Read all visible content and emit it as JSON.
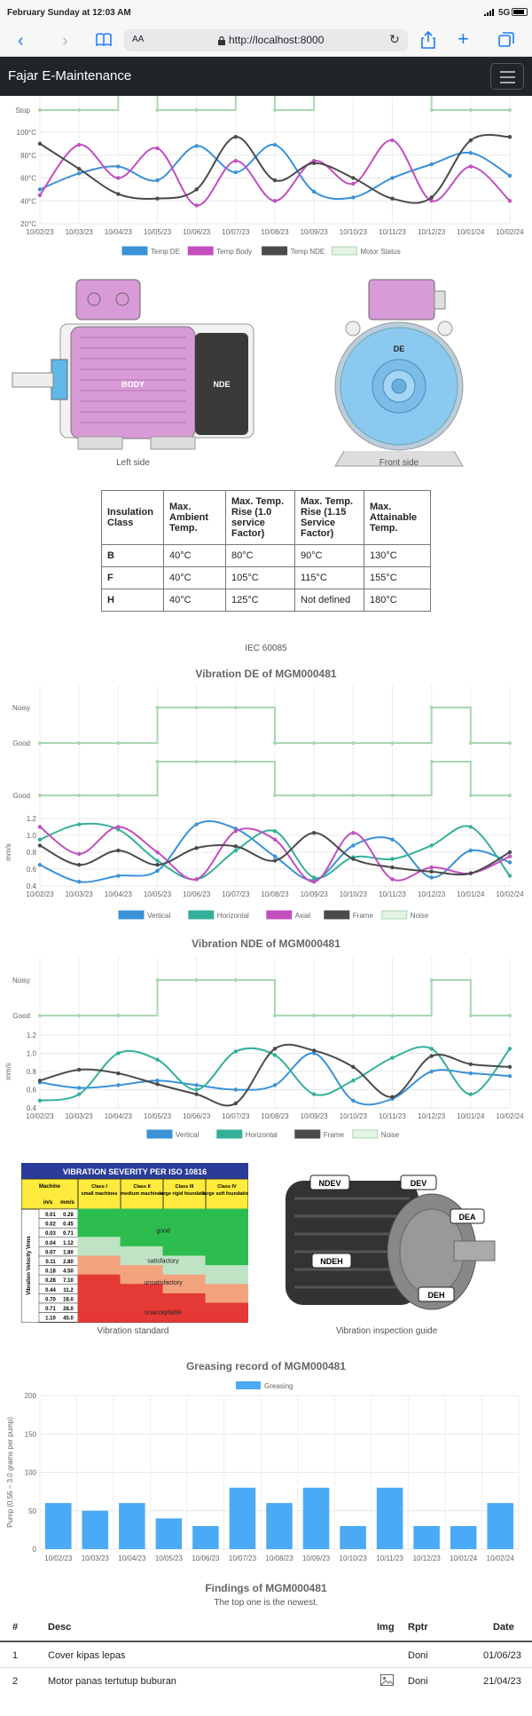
{
  "status": {
    "time": "February Sunday at 12:03 AM",
    "signal": "5G"
  },
  "browser": {
    "reader_label": "AA",
    "url": "http://localhost:8000"
  },
  "app": {
    "brand": "Fajar E-Maintenance"
  },
  "colors": {
    "blue": "#3a92d8",
    "magenta": "#c24fbf",
    "dark": "#4a4a4a",
    "green": "#a8d8b0",
    "teal": "#34b09a",
    "bar": "#4aaaf5"
  },
  "dates": [
    "10/02/23",
    "10/03/23",
    "10/04/23",
    "10/05/23",
    "10/06/23",
    "10/07/23",
    "10/08/23",
    "10/09/23",
    "10/10/23",
    "10/11/23",
    "10/12/23",
    "10/01/24",
    "10/02/24"
  ],
  "temp_chart": {
    "chart_data": {
      "type": "line",
      "status_labels": [
        "Stop"
      ],
      "y_ticks": [
        "100°C",
        "80°C",
        "60°C",
        "40°C",
        "20°C"
      ],
      "ylim": [
        20,
        100
      ],
      "series": [
        {
          "name": "Temp DE",
          "values": [
            50,
            64,
            70,
            58,
            88,
            65,
            89,
            48,
            43,
            60,
            72,
            82,
            62
          ]
        },
        {
          "name": "Temp Body",
          "values": [
            45,
            89,
            60,
            86,
            36,
            75,
            40,
            75,
            55,
            93,
            40,
            70,
            40
          ]
        },
        {
          "name": "Temp NDE",
          "values": [
            90,
            68,
            46,
            42,
            50,
            96,
            58,
            73,
            60,
            42,
            43,
            93,
            96
          ]
        },
        {
          "name": "Motor Status",
          "values": [
            "Stop",
            "Stop",
            "Run",
            "Stop",
            "Stop",
            "Run",
            "Stop",
            "Run",
            "Run",
            "Run",
            "Stop",
            "Stop",
            "Stop"
          ]
        }
      ]
    }
  },
  "motor": {
    "body_label": "BODY",
    "nde_label": "NDE",
    "de_label": "DE",
    "left_caption": "Left side",
    "front_caption": "Front side"
  },
  "insulation": {
    "headers": [
      "Insulation Class",
      "Max. Ambient Temp.",
      "Max. Temp. Rise (1.0 service Factor)",
      "Max. Temp. Rise (1.15 Service Factor)",
      "Max. Attainable Temp."
    ],
    "rows": [
      [
        "B",
        "40°C",
        "80°C",
        "90°C",
        "130°C"
      ],
      [
        "F",
        "40°C",
        "105°C",
        "115°C",
        "155°C"
      ],
      [
        "H",
        "40°C",
        "125°C",
        "Not defined",
        "180°C"
      ]
    ],
    "caption": "IEC 60085"
  },
  "vib_de": {
    "title": "Vibration DE of MGM000481",
    "chart_data": {
      "type": "line",
      "noise_labels": [
        "Noisy",
        "Good"
      ],
      "status_labels": [
        "Good"
      ],
      "y_ticks": [
        "1.2",
        "1.0",
        "0.8",
        "0.6",
        "0.4"
      ],
      "ylim": [
        0.4,
        1.2
      ],
      "ylabel": "mm/s",
      "series": [
        {
          "name": "Vertical",
          "values": [
            0.65,
            0.45,
            0.52,
            0.58,
            1.13,
            1.08,
            0.75,
            0.47,
            0.88,
            0.95,
            0.5,
            0.82,
            0.68
          ]
        },
        {
          "name": "Horizontal",
          "values": [
            0.95,
            1.13,
            1.07,
            0.7,
            0.48,
            0.82,
            1.05,
            0.5,
            0.74,
            0.72,
            0.88,
            1.1,
            0.52
          ]
        },
        {
          "name": "Axial",
          "values": [
            1.1,
            0.78,
            1.1,
            0.8,
            0.48,
            1.05,
            0.95,
            0.45,
            1.03,
            0.48,
            0.62,
            0.55,
            0.75
          ]
        },
        {
          "name": "Frame",
          "values": [
            0.88,
            0.65,
            0.82,
            0.65,
            0.85,
            0.87,
            0.7,
            1.03,
            0.72,
            0.62,
            0.57,
            0.55,
            0.8
          ]
        },
        {
          "name": "Noise",
          "values": [
            "Good",
            "Good",
            "Good",
            "Noisy",
            "Noisy",
            "Noisy",
            "Good",
            "Good",
            "Good",
            "Good",
            "Noisy",
            "Good",
            "Good"
          ]
        }
      ]
    }
  },
  "vib_nde": {
    "title": "Vibration NDE of MGM000481",
    "chart_data": {
      "type": "line",
      "noise_labels": [
        "Noisy",
        "Good"
      ],
      "y_ticks": [
        "1.2",
        "1.0",
        "0.8",
        "0.6",
        "0.4"
      ],
      "ylim": [
        0.4,
        1.2
      ],
      "ylabel": "mm/s",
      "series": [
        {
          "name": "Vertical",
          "values": [
            0.68,
            0.62,
            0.65,
            0.7,
            0.65,
            0.6,
            0.65,
            1.0,
            0.48,
            0.5,
            0.8,
            0.78,
            0.75
          ]
        },
        {
          "name": "Horizontal",
          "values": [
            0.48,
            0.55,
            1.0,
            0.93,
            0.6,
            1.02,
            0.98,
            0.55,
            0.7,
            0.95,
            1.05,
            0.55,
            1.05
          ]
        },
        {
          "name": "Frame",
          "values": [
            0.7,
            0.82,
            0.78,
            0.66,
            0.55,
            0.45,
            1.05,
            1.03,
            0.85,
            0.52,
            0.97,
            0.88,
            0.85
          ]
        },
        {
          "name": "Noise",
          "values": [
            "Good",
            "Good",
            "Good",
            "Noisy",
            "Noisy",
            "Noisy",
            "Good",
            "Good",
            "Good",
            "Good",
            "Noisy",
            "Good",
            "Good"
          ]
        }
      ]
    }
  },
  "iso": {
    "title": "VIBRATION SEVERITY PER ISO 10816",
    "machine": "Machine",
    "units": [
      "in/s",
      "mm/s"
    ],
    "side": "Vibration Velocity Vrms",
    "classes": [
      "Class I small machines",
      "Class II medium machines",
      "Class III large rigid foundation",
      "Class IV large soft foundation"
    ],
    "rows": [
      [
        "0.01",
        "0.28"
      ],
      [
        "0.02",
        "0.45"
      ],
      [
        "0.03",
        "0.71"
      ],
      [
        "0.04",
        "1.12"
      ],
      [
        "0.07",
        "1.80"
      ],
      [
        "0.11",
        "2.80"
      ],
      [
        "0.18",
        "4.50"
      ],
      [
        "0.28",
        "7.10"
      ],
      [
        "0.44",
        "11.2"
      ],
      [
        "0.70",
        "18.0"
      ],
      [
        "0.71",
        "28.0"
      ],
      [
        "1.10",
        "45.0"
      ]
    ],
    "zones": [
      "good",
      "satisfactory",
      "unsatisfactory",
      "unacceptable"
    ],
    "caption": "Vibration standard"
  },
  "guide": {
    "labels": [
      "NDEV",
      "DEV",
      "DEA",
      "NDEH",
      "DEH"
    ],
    "caption": "Vibration inspection guide"
  },
  "greasing": {
    "title": "Greasing record of MGM000481",
    "chart_data": {
      "type": "bar",
      "y_ticks": [
        "200",
        "150",
        "100",
        "50",
        "0"
      ],
      "ylim": [
        0,
        200
      ],
      "ylabel": "Pump (0.56 ~ 3.0 grams per pump)",
      "series": [
        {
          "name": "Greasing",
          "values": [
            60,
            50,
            60,
            40,
            30,
            80,
            60,
            80,
            30,
            80,
            30,
            30,
            60
          ]
        }
      ]
    }
  },
  "findings": {
    "title": "Findings of MGM000481",
    "subtitle": "The top one is the newest.",
    "headers": {
      "num": "#",
      "desc": "Desc",
      "img": "Img",
      "rptr": "Rptr",
      "date": "Date"
    },
    "rows": [
      {
        "num": "1",
        "desc": "Cover kipas lepas",
        "rptr": "Doni",
        "date": "01/06/23",
        "has_img": false
      },
      {
        "num": "2",
        "desc": "Motor panas tertutup buburan",
        "rptr": "Doni",
        "date": "21/04/23",
        "has_img": true
      }
    ]
  }
}
